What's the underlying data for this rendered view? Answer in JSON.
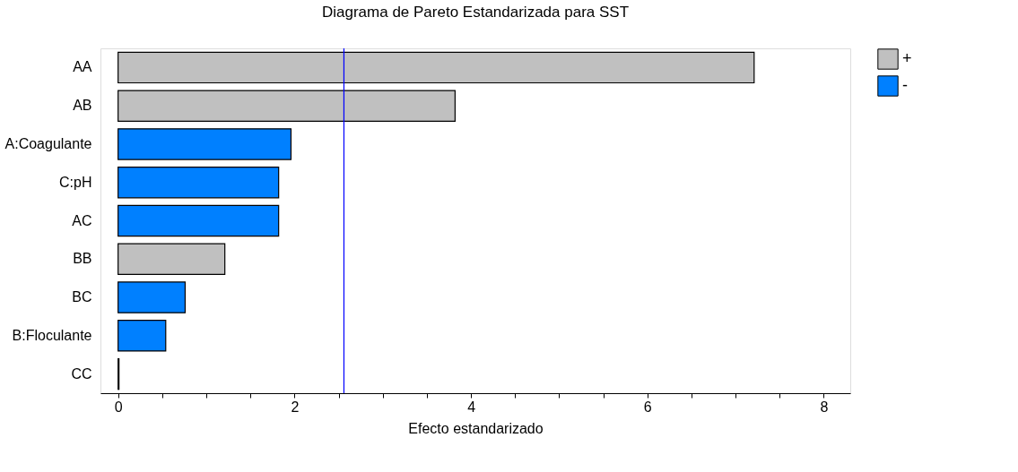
{
  "chart_data": {
    "type": "bar",
    "orientation": "horizontal",
    "title": "Diagrama de Pareto Estandarizada para SST",
    "xlabel": "Efecto estandarizado",
    "categories": [
      "AA",
      "AB",
      "A:Coagulante",
      "C:pH",
      "AC",
      "BB",
      "BC",
      "B:Floculante",
      "CC"
    ],
    "series": [
      {
        "name": "+",
        "color": "#c0c0c0",
        "values": [
          7.21,
          3.82,
          null,
          null,
          null,
          1.21,
          null,
          null,
          0.01
        ]
      },
      {
        "name": "-",
        "color": "#0080ff",
        "values": [
          null,
          null,
          1.96,
          1.82,
          1.82,
          null,
          0.76,
          0.54,
          null
        ]
      }
    ],
    "xlim": [
      -0.2,
      8.3
    ],
    "xticks": [
      0,
      {
        "value": 0.5,
        "label": null
      },
      {
        "value": 1,
        "label": null
      },
      {
        "value": 1.5,
        "label": null
      },
      2,
      {
        "value": 2.5,
        "label": null
      },
      {
        "value": 3,
        "label": null
      },
      {
        "value": 3.5,
        "label": null
      },
      4,
      {
        "value": 4.5,
        "label": null
      },
      {
        "value": 5,
        "label": null
      },
      {
        "value": 5.5,
        "label": null
      },
      6,
      {
        "value": 6.5,
        "label": null
      },
      {
        "value": 7,
        "label": null
      },
      {
        "value": 7.5,
        "label": null
      },
      8
    ],
    "ref_lines": [
      {
        "axis": "x",
        "value": 2.56,
        "color": "#0000ff"
      }
    ],
    "legend": "top right",
    "grid": false
  }
}
